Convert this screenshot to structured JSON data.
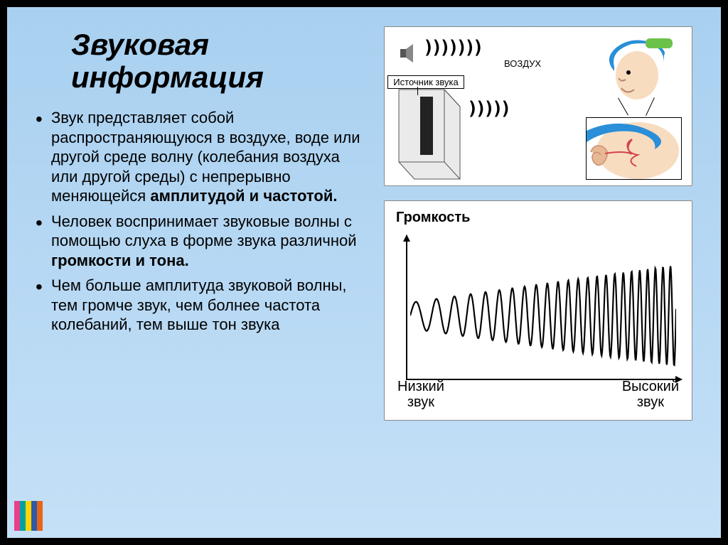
{
  "title_line1": "Звуковая",
  "title_line2": "информация",
  "bullets": [
    {
      "pre": "Звук представляет собой распространяющуюся в воздухе, воде или другой среде волну (колебания воздуха или другой среды) с непрерывно меняющейся ",
      "bold": "амплитудой и частотой."
    },
    {
      "pre": "Человек воспринимает звуковые волны с помощью слуха в форме звука различной ",
      "bold": "громкости и тона."
    },
    {
      "pre": "Чем больше амплитуда звуковой волны, тем громче звук, чем болнее частота колебаний, тем выше тон звука",
      "bold": ""
    }
  ],
  "diagram1": {
    "source_label": "Источник звука",
    "air_label": "ВОЗДУХ",
    "colors": {
      "speaker_body": "#d9d9d9",
      "speaker_edge": "#555",
      "face": "#f8dcc0",
      "cap_blue": "#2a8fd8",
      "cap_green": "#6bc24a",
      "ear": "#e8b894"
    }
  },
  "diagram2": {
    "title": "Громкость",
    "xlabel_left_l1": "Низкий",
    "xlabel_left_l2": "звук",
    "xlabel_right_l1": "Высокий",
    "xlabel_right_l2": "звук",
    "wave": {
      "cycles": 24,
      "amp_start": 18,
      "amp_end": 70,
      "freq_start": 1.0,
      "freq_end": 3.2,
      "stroke": "#000",
      "stroke_width": 2.2
    }
  },
  "stripe_colors": [
    "#e83e8c",
    "#00a2a2",
    "#ffd400",
    "#2e5aa8",
    "#e8641b"
  ]
}
